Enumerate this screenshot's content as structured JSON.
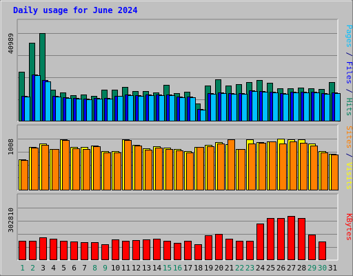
{
  "chart_data": {
    "type": "bar",
    "title": "Daily usage for June 2024",
    "x": [
      "1",
      "2",
      "3",
      "4",
      "5",
      "6",
      "7",
      "8",
      "9",
      "10",
      "11",
      "12",
      "13",
      "14",
      "15",
      "16",
      "17",
      "18",
      "19",
      "20",
      "21",
      "22",
      "23",
      "24",
      "25",
      "26",
      "27",
      "28",
      "29",
      "30",
      "31"
    ],
    "weekend_days": [
      "1",
      "2",
      "8",
      "9",
      "15",
      "16",
      "22",
      "23",
      "29",
      "30"
    ],
    "panels": [
      {
        "id": "hits-files-pages",
        "max_label": "40989",
        "ylim": [
          0,
          40989
        ],
        "side_label": [
          {
            "text": "Pages",
            "color": "#00c0ff"
          },
          {
            "text": " / ",
            "color": "#000080"
          },
          {
            "text": "Files",
            "color": "#0000ff"
          },
          {
            "text": " / ",
            "color": "#000080"
          },
          {
            "text": "Hits",
            "color": "#00805c"
          }
        ],
        "series": [
          {
            "name": "Hits",
            "color": "#00805c",
            "values": [
              23200,
              36400,
              40989,
              14800,
              13400,
              12200,
              12600,
              11900,
              14800,
              14700,
              15900,
              14000,
              14000,
              13500,
              17100,
              13200,
              13700,
              8300,
              16800,
              19500,
              16600,
              17400,
              18200,
              19300,
              17800,
              15500,
              15400,
              15700,
              15400,
              14900,
              18200
            ]
          },
          {
            "name": "Files",
            "color": "#0000ff",
            "values": [
              11900,
              21900,
              19100,
              12000,
              11100,
              10900,
              10600,
              10800,
              11000,
              12000,
              12500,
              12100,
              12400,
              12400,
              12600,
              11500,
              11600,
              5800,
              13200,
              13500,
              13100,
              13100,
              14500,
              14200,
              13800,
              13000,
              13700,
              13900,
              13800,
              13100,
              13300
            ]
          },
          {
            "name": "Pages",
            "color": "#00c0ff",
            "values": [
              11500,
              21300,
              18600,
              11600,
              10800,
              10600,
              10300,
              10500,
              10700,
              11700,
              12200,
              11800,
              12100,
              12100,
              12300,
              11200,
              11300,
              5600,
              12900,
              13200,
              12800,
              12900,
              14200,
              13900,
              13400,
              12700,
              13400,
              13600,
              13500,
              12800,
              13000
            ]
          }
        ]
      },
      {
        "id": "visits-sites",
        "max_label": "1008",
        "ylim": [
          0,
          1008
        ],
        "side_label": [
          {
            "text": "Sites",
            "color": "#ff8000"
          },
          {
            "text": " / ",
            "color": "#000080"
          },
          {
            "text": "Visits",
            "color": "#ffff00"
          }
        ],
        "series": [
          {
            "name": "Visits",
            "color": "#ffff00",
            "values": [
              610,
              840,
              910,
              800,
              1000,
              840,
              850,
              880,
              760,
              760,
              1000,
              890,
              820,
              860,
              830,
              800,
              760,
              850,
              890,
              940,
              900,
              810,
              1000,
              940,
              960,
              1008,
              990,
              1000,
              920,
              770,
              710
            ]
          },
          {
            "name": "Sites",
            "color": "#ff8000",
            "values": [
              590,
              830,
              890,
              800,
              980,
              820,
              810,
              860,
              740,
              740,
              980,
              880,
              790,
              830,
              800,
              780,
              740,
              840,
              860,
              920,
              990,
              800,
              910,
              930,
              960,
              920,
              960,
              930,
              880,
              740,
              700
            ]
          }
        ]
      },
      {
        "id": "kbytes",
        "max_label": "302810",
        "ylim": [
          0,
          302810
        ],
        "side_label": [
          {
            "text": "KBytes",
            "color": "#ff0000"
          }
        ],
        "series": [
          {
            "name": "KBytes",
            "color": "#ff0000",
            "values": [
              112000,
              112000,
              131000,
              122000,
              112000,
              106000,
              105000,
              103000,
              93000,
              120000,
              112000,
              115000,
              121000,
              125000,
              110000,
              98000,
              112000,
              93000,
              142000,
              152000,
              122000,
              110000,
              112000,
              213000,
              243000,
              245000,
              255000,
              243000,
              147000,
              106000,
              0
            ]
          }
        ]
      }
    ]
  }
}
